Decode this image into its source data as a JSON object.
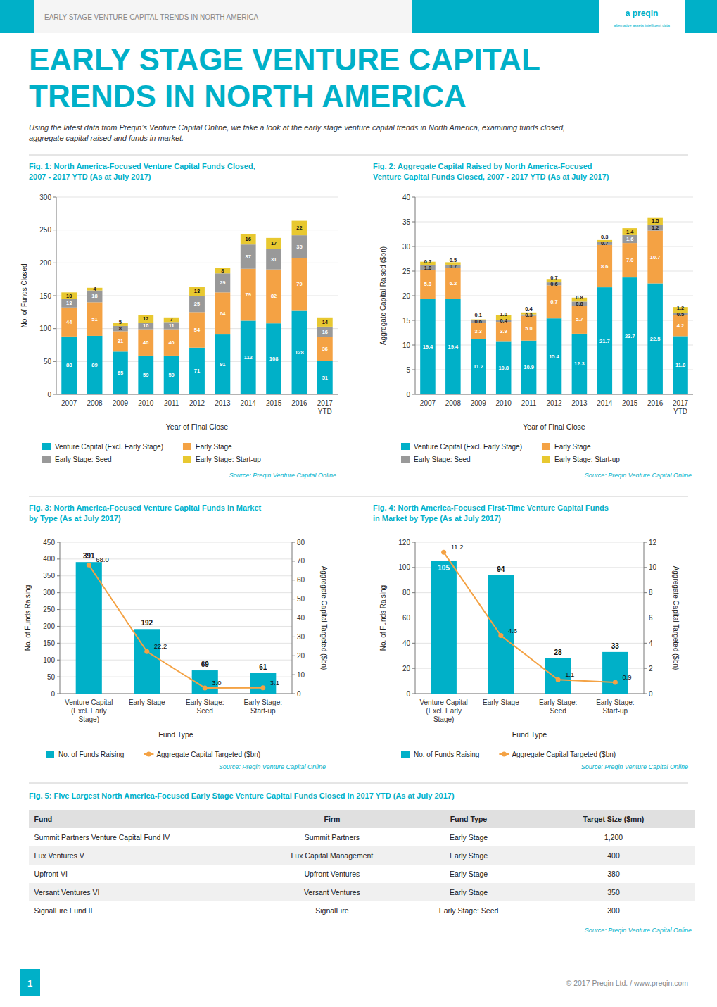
{
  "header_text": "EARLY STAGE VENTURE CAPITAL TRENDS IN NORTH AMERICA",
  "brand": "a preqin",
  "brand_tagline": "alternative assets  intelligent data",
  "title": "EARLY STAGE VENTURE CAPITAL\nTRENDS IN NORTH AMERICA",
  "subtitle": "Using the latest data from Preqin’s Venture Capital Online, we take a look at the early stage venture capital trends in North America, examining funds closed,\naggregate capital raised and funds in market.",
  "footer": "© 2017 Preqin Ltd. / www.preqin.com",
  "page_number": "1",
  "chart_data": [
    {
      "type": "bar",
      "stacked": true,
      "title": "Fig. 1: North America-Focused Venture Capital Funds Closed,\n2007 - 2017 YTD (As at July 2017)",
      "categories": [
        "2007",
        "2008",
        "2009",
        "2010",
        "2011",
        "2012",
        "2013",
        "2014",
        "2015",
        "2016",
        "2017\nYTD"
      ],
      "series": [
        {
          "name": "Venture Capital (Excl. Early Stage)",
          "color": "#00b0c8",
          "values": [
            88,
            89,
            65,
            59,
            59,
            71,
            91,
            112,
            108,
            128,
            51
          ]
        },
        {
          "name": "Early Stage",
          "color": "#f4a244",
          "values": [
            44,
            51,
            31,
            40,
            40,
            54,
            64,
            79,
            82,
            79,
            36
          ]
        },
        {
          "name": "Early Stage: Seed",
          "color": "#999999",
          "values": [
            13,
            18,
            8,
            10,
            11,
            25,
            29,
            37,
            31,
            35,
            16
          ]
        },
        {
          "name": "Early Stage: Start-up",
          "color": "#e8c830",
          "values": [
            10,
            4,
            5,
            12,
            7,
            13,
            8,
            16,
            17,
            22,
            14
          ]
        }
      ],
      "x_label": "Year of Final Close",
      "y_label": "No. of Funds Closed",
      "ylim": [
        0,
        300
      ],
      "yticks": [
        0,
        50,
        100,
        150,
        200,
        250,
        300
      ],
      "grid": true,
      "legend": "bottom",
      "data_labels": true,
      "source": "Source: Preqin Venture Capital Online"
    },
    {
      "type": "bar",
      "stacked": true,
      "title": "Fig. 2: Aggregate Capital Raised by North America-Focused\nVenture Capital Funds Closed, 2007 - 2017 YTD (As at July 2017)",
      "categories": [
        "2007",
        "2008",
        "2009",
        "2010",
        "2011",
        "2012",
        "2013",
        "2014",
        "2015",
        "2016",
        "2017\nYTD"
      ],
      "series": [
        {
          "name": "Venture Capital (Excl. Early Stage)",
          "color": "#00b0c8",
          "values": [
            19.4,
            19.4,
            11.2,
            10.8,
            10.9,
            15.4,
            12.3,
            21.7,
            23.7,
            22.5,
            11.8
          ],
          "value_labels": [
            "19.4",
            "19.4",
            "11.2",
            "10.8",
            "10.9",
            "15.4",
            "12.3",
            "21.7",
            "23.7",
            "22.5",
            "11.8"
          ]
        },
        {
          "name": "Early Stage",
          "color": "#f4a244",
          "values": [
            5.8,
            6.2,
            3.3,
            3.9,
            5.0,
            6.7,
            5.7,
            8.6,
            7.0,
            10.7,
            4.2
          ],
          "value_labels": [
            "5.8",
            "6.2",
            "3.3",
            "3.9",
            "5.0",
            "6.7",
            "5.7",
            "8.6",
            "7.0",
            "10.7",
            "4.2"
          ]
        },
        {
          "name": "Early Stage: Seed",
          "color": "#999999",
          "values": [
            1.0,
            0.7,
            0.6,
            0.4,
            0.3,
            0.6,
            0.8,
            0.7,
            1.6,
            1.2,
            0.5
          ],
          "value_labels": [
            "1.0",
            "0.7",
            "0.6",
            "0.4",
            "0.3",
            "0.6",
            "0.8",
            "0.7",
            "1.6",
            "1.2",
            "0.5"
          ]
        },
        {
          "name": "Early Stage: Start-up",
          "color": "#e8c830",
          "values": [
            0.7,
            0.5,
            0.1,
            1.0,
            0.4,
            0.7,
            0.8,
            0.3,
            1.4,
            1.5,
            1.2
          ],
          "value_labels": [
            "0.7",
            "0.5",
            "0.1",
            "1.0",
            "0.4",
            "0.7",
            "0.8",
            "0.3",
            "1.4",
            "1.5",
            "1.2"
          ]
        }
      ],
      "x_label": "Year of Final Close",
      "y_label": "Aggregate Capital Raised ($bn)",
      "ylim": [
        0,
        40
      ],
      "yticks": [
        0,
        5,
        10,
        15,
        20,
        25,
        30,
        35,
        40
      ],
      "grid": true,
      "legend": "bottom",
      "data_labels": true,
      "source": "Source: Preqin Venture Capital Online"
    },
    {
      "type": "bar",
      "title": "Fig. 3: North America-Focused Venture Capital Funds in Market\nby Type (As at July 2017)",
      "categories": [
        "Venture Capital\n(Excl. Early\nStage)",
        "Early Stage",
        "Early Stage:\nSeed",
        "Early Stage:\nStart-up"
      ],
      "series": [
        {
          "name": "No. of Funds Raising",
          "type": "bar",
          "color": "#00b0c8",
          "values": [
            391,
            192,
            69,
            61
          ]
        },
        {
          "name": "Aggregate Capital Targeted ($bn)",
          "type": "line",
          "axis": "y2",
          "color": "#f4a244",
          "marker": "circle",
          "line_style": "solid",
          "values": [
            68.0,
            22.2,
            3.0,
            3.1
          ],
          "value_labels": [
            "68.0",
            "22.2",
            "3.0",
            "3.1"
          ]
        }
      ],
      "x_label": "Fund Type",
      "y_label": "No. of Funds Raising",
      "y2_label": "Aggregate Capital Targeted ($bn)",
      "ylim": [
        0,
        450
      ],
      "yticks": [
        0,
        50,
        100,
        150,
        200,
        250,
        300,
        350,
        400,
        450
      ],
      "y2lim": [
        0,
        80
      ],
      "y2ticks": [
        0,
        10,
        20,
        30,
        40,
        50,
        60,
        70,
        80
      ],
      "grid": true,
      "legend": "bottom",
      "data_labels": true,
      "source": "Source: Preqin Venture Capital Online"
    },
    {
      "type": "bar",
      "title": "Fig. 4: North America-Focused First-Time Venture Capital Funds\nin Market by Type (As at July 2017)",
      "categories": [
        "Venture Capital\n(Excl. Early\nStage)",
        "Early Stage",
        "Early Stage:\nSeed",
        "Early Stage:\nStart-up"
      ],
      "series": [
        {
          "name": "No. of Funds Raising",
          "type": "bar",
          "color": "#00b0c8",
          "values": [
            105,
            94,
            28,
            33
          ]
        },
        {
          "name": "Aggregate Capital Targeted ($bn)",
          "type": "line",
          "axis": "y2",
          "color": "#f4a244",
          "marker": "circle",
          "line_style": "solid",
          "values": [
            11.2,
            4.6,
            1.1,
            0.9
          ]
        }
      ],
      "x_label": "Fund Type",
      "y_label": "No. of Funds Raising",
      "y2_label": "Aggregate Capital Targeted ($bn)",
      "ylim": [
        0,
        120
      ],
      "yticks": [
        0,
        20,
        40,
        60,
        80,
        100,
        120
      ],
      "y2lim": [
        0,
        12
      ],
      "y2ticks": [
        0,
        2,
        4,
        6,
        8,
        10,
        12
      ],
      "grid": true,
      "legend": "bottom",
      "data_labels": true,
      "source": "Source: Preqin Venture Capital Online"
    },
    {
      "type": "table",
      "title": "Fig. 5: Five Largest North America-Focused Early Stage Venture Capital Funds Closed in 2017 YTD (As at July 2017)",
      "columns": [
        "Fund",
        "Firm",
        "Fund Type",
        "Target Size ($mn)"
      ],
      "rows": [
        [
          "Summit Partners Venture Capital Fund IV",
          "Summit Partners",
          "Early Stage",
          "1,200"
        ],
        [
          "Lux Ventures V",
          "Lux Capital Management",
          "Early Stage",
          "400"
        ],
        [
          "Upfront VI",
          "Upfront Ventures",
          "Early Stage",
          "380"
        ],
        [
          "Versant Ventures VI",
          "Versant Ventures",
          "Early Stage",
          "350"
        ],
        [
          "SignalFire Fund II",
          "SignalFire",
          "Early Stage: Seed",
          "300"
        ]
      ],
      "source": "Source: Preqin Venture Capital Online"
    }
  ]
}
